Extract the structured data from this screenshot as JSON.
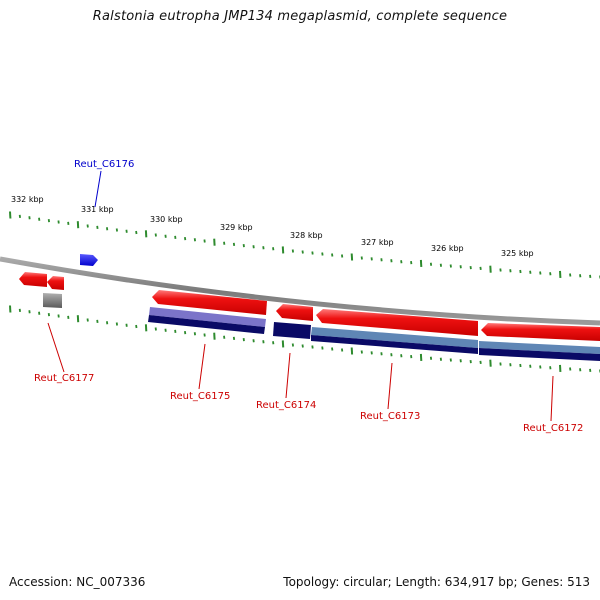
{
  "title": "Ralstonia eutropha JMP134 megaplasmid, complete sequence",
  "accession": "Accession: NC_007336",
  "summary": "Topology: circular; Length: 634,917 bp; Genes: 513",
  "scale": {
    "labels": [
      "332 kbp",
      "331 kbp",
      "330 kbp",
      "329 kbp",
      "328 kbp",
      "327 kbp",
      "326 kbp",
      "325 kbp"
    ],
    "tick_color": "#2e8b2e"
  },
  "genes": [
    {
      "name": "Reut_C6176",
      "color": "#0000cc"
    },
    {
      "name": "Reut_C6177",
      "color": "#cc0000"
    },
    {
      "name": "Reut_C6175",
      "color": "#cc0000"
    },
    {
      "name": "Reut_C6174",
      "color": "#cc0000"
    },
    {
      "name": "Reut_C6173",
      "color": "#cc0000"
    },
    {
      "name": "Reut_C6172",
      "color": "#cc0000"
    }
  ],
  "colors": {
    "backbone": "#8a8a8a",
    "cds": "#ee1111",
    "cds_highlight": "#ff8a8a",
    "blue_cds": "#1010ee",
    "gray_gene": "#777777",
    "navy": "#0a0a66",
    "lavender": "#7b74c9",
    "steel": "#5f86b5"
  }
}
